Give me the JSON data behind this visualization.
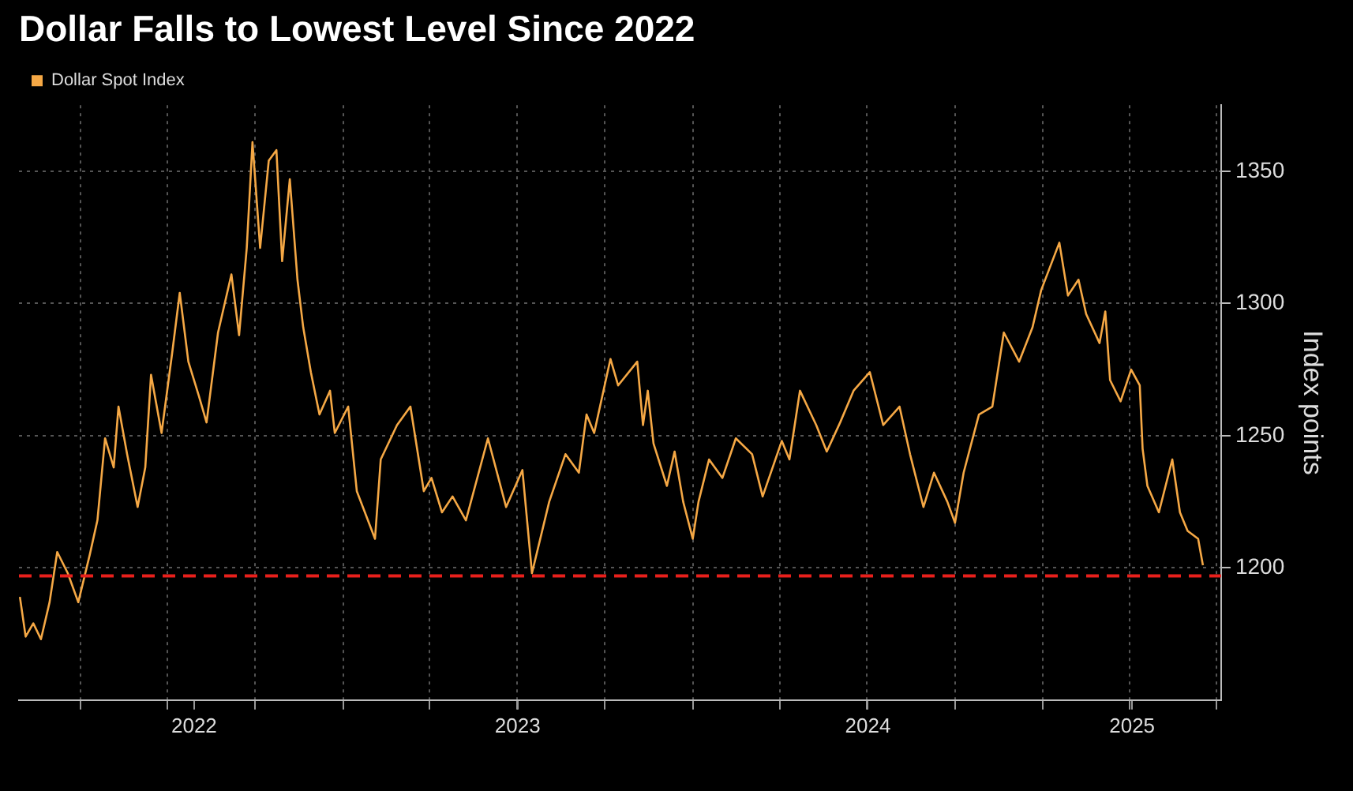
{
  "chart_data": {
    "type": "line",
    "title": "Dollar Falls to Lowest Level Since 2022",
    "ylabel": "Index points",
    "legend": "top left",
    "grid": true,
    "x": [
      "2022-01-28",
      "2022-02-03",
      "2022-02-11",
      "2022-02-19",
      "2022-02-28",
      "2022-03-08",
      "2022-03-19",
      "2022-03-30",
      "2022-04-11",
      "2022-04-19",
      "2022-04-27",
      "2022-05-06",
      "2022-05-11",
      "2022-05-20",
      "2022-05-31",
      "2022-06-08",
      "2022-06-14",
      "2022-06-25",
      "2022-07-06",
      "2022-07-14",
      "2022-07-23",
      "2022-08-03",
      "2022-08-11",
      "2022-08-23",
      "2022-09-06",
      "2022-09-14",
      "2022-09-22",
      "2022-09-28",
      "2022-10-06",
      "2022-10-15",
      "2022-10-23",
      "2022-10-29",
      "2022-11-06",
      "2022-11-14",
      "2022-11-20",
      "2022-11-28",
      "2022-12-07",
      "2022-12-18",
      "2022-12-23",
      "2023-01-06",
      "2023-01-15",
      "2023-02-03",
      "2023-02-09",
      "2023-02-26",
      "2023-03-12",
      "2023-03-26",
      "2023-04-03",
      "2023-04-14",
      "2023-04-25",
      "2023-05-09",
      "2023-06-01",
      "2023-06-20",
      "2023-07-07",
      "2023-07-17",
      "2023-08-04",
      "2023-08-21",
      "2023-09-04",
      "2023-09-12",
      "2023-09-20",
      "2023-10-07",
      "2023-10-15",
      "2023-11-04",
      "2023-11-10",
      "2023-11-15",
      "2023-11-21",
      "2023-12-05",
      "2023-12-13",
      "2023-12-22",
      "2024-01-01",
      "2024-01-07",
      "2024-01-18",
      "2024-02-01",
      "2024-02-15",
      "2024-03-03",
      "2024-03-14",
      "2024-04-03",
      "2024-04-11",
      "2024-04-22",
      "2024-05-09",
      "2024-05-20",
      "2024-06-03",
      "2024-06-17",
      "2024-07-04",
      "2024-07-18",
      "2024-08-04",
      "2024-08-15",
      "2024-08-29",
      "2024-09-09",
      "2024-09-23",
      "2024-10-01",
      "2024-10-10",
      "2024-10-26",
      "2024-11-09",
      "2024-11-21",
      "2024-12-07",
      "2024-12-21",
      "2024-12-30",
      "2025-01-18",
      "2025-01-27",
      "2025-02-07",
      "2025-02-15",
      "2025-03-01",
      "2025-03-07",
      "2025-03-12",
      "2025-03-23",
      "2025-04-03",
      "2025-04-12",
      "2025-04-15",
      "2025-04-20",
      "2025-05-02",
      "2025-05-16",
      "2025-05-24",
      "2025-06-01",
      "2025-06-12",
      "2025-06-17"
    ],
    "series": [
      {
        "name": "Dollar Spot Index",
        "color": "#f5a845",
        "values": [
          1189,
          1174,
          1179,
          1173,
          1187,
          1206,
          1198,
          1187,
          1205,
          1218,
          1249,
          1238,
          1261,
          1243,
          1223,
          1238,
          1273,
          1251,
          1281,
          1304,
          1278,
          1265,
          1255,
          1289,
          1311,
          1288,
          1321,
          1361,
          1321,
          1354,
          1358,
          1316,
          1347,
          1309,
          1291,
          1274,
          1258,
          1267,
          1251,
          1261,
          1229,
          1211,
          1241,
          1254,
          1261,
          1229,
          1234,
          1221,
          1227,
          1218,
          1249,
          1223,
          1237,
          1198,
          1225,
          1243,
          1236,
          1258,
          1251,
          1279,
          1269,
          1278,
          1254,
          1267,
          1247,
          1231,
          1244,
          1225,
          1211,
          1225,
          1241,
          1234,
          1249,
          1243,
          1227,
          1248,
          1241,
          1267,
          1254,
          1244,
          1255,
          1267,
          1274,
          1254,
          1261,
          1243,
          1223,
          1236,
          1225,
          1217,
          1236,
          1258,
          1261,
          1289,
          1278,
          1291,
          1305,
          1323,
          1303,
          1309,
          1296,
          1285,
          1297,
          1271,
          1263,
          1275,
          1269,
          1245,
          1231,
          1221,
          1241,
          1221,
          1214,
          1211,
          1201
        ]
      }
    ],
    "xlim": [
      "2022-01-27",
      "2025-07-06"
    ],
    "xticks": [
      {
        "value": "2022-04-01",
        "label": null
      },
      {
        "value": "2022-07-01",
        "label": null
      },
      {
        "value": "2022-07-29",
        "label": "2022"
      },
      {
        "value": "2022-10-01",
        "label": null
      },
      {
        "value": "2023-01-01",
        "label": null
      },
      {
        "value": "2023-04-01",
        "label": null
      },
      {
        "value": "2023-07-01",
        "label": null
      },
      {
        "value": "2023-07-02",
        "label": "2023"
      },
      {
        "value": "2023-10-01",
        "label": null
      },
      {
        "value": "2024-01-01",
        "label": null
      },
      {
        "value": "2024-04-01",
        "label": null
      },
      {
        "value": "2024-07-01",
        "label": null
      },
      {
        "value": "2024-07-02",
        "label": "2024"
      },
      {
        "value": "2024-10-01",
        "label": null
      },
      {
        "value": "2025-01-01",
        "label": null
      },
      {
        "value": "2025-04-01",
        "label": null
      },
      {
        "value": "2025-04-04",
        "label": "2025"
      },
      {
        "value": "2025-07-01",
        "label": null
      }
    ],
    "ylim": [
      1150,
      1375
    ],
    "yticks": [
      1200,
      1250,
      1300,
      1350
    ],
    "ref_lines": [
      {
        "axis": "y",
        "value": 1197,
        "color": "#e8201c",
        "line_style": "dashed"
      }
    ]
  }
}
